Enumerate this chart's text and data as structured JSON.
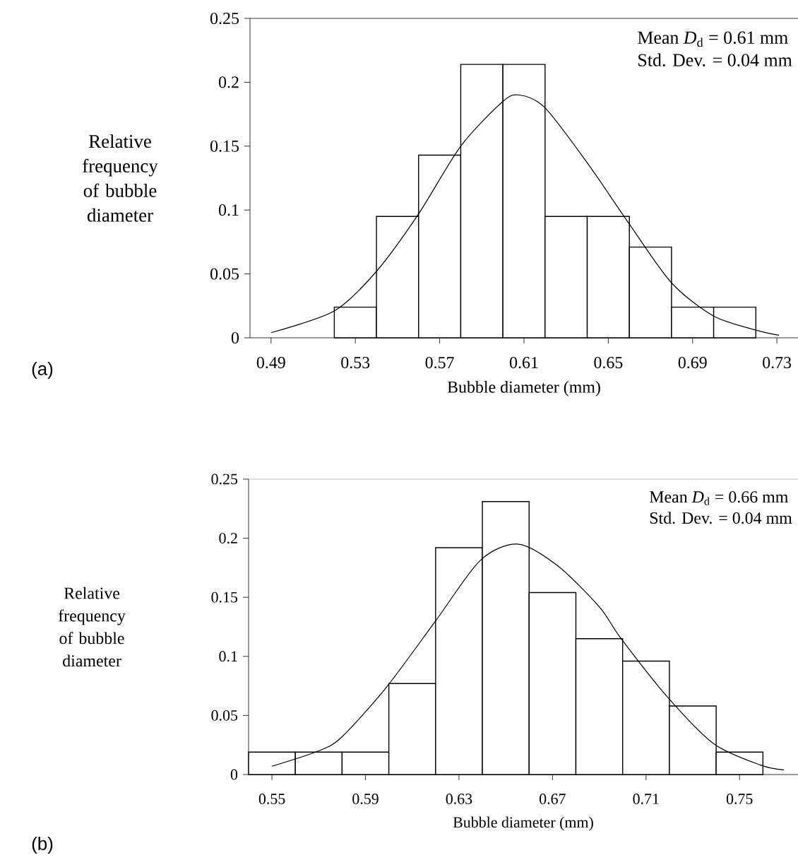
{
  "chart_data": [
    {
      "type": "histogram",
      "xlabel": "Bubble diameter (mm)",
      "ylabel": "Relative frequency of bubble diameter",
      "bins": [
        0.52,
        0.54,
        0.56,
        0.58,
        0.6,
        0.62,
        0.64,
        0.66,
        0.68,
        0.7,
        0.72
      ],
      "values": [
        0.024,
        0.095,
        0.143,
        0.214,
        0.214,
        0.095,
        0.095,
        0.071,
        0.024,
        0.024
      ],
      "series": [
        {
          "type": "line",
          "color": "#000000",
          "x": [
            0.49,
            0.52,
            0.54,
            0.56,
            0.58,
            0.6,
            0.608,
            0.62,
            0.64,
            0.66,
            0.68,
            0.7,
            0.72,
            0.731
          ],
          "values": [
            0.004,
            0.021,
            0.052,
            0.097,
            0.15,
            0.185,
            0.19,
            0.18,
            0.137,
            0.089,
            0.043,
            0.017,
            0.006,
            0.002
          ]
        }
      ],
      "xlim": [
        0.48,
        0.74
      ],
      "ylim": [
        0,
        0.25
      ],
      "xticks": [
        0.49,
        0.53,
        0.57,
        0.61,
        0.65,
        0.69,
        0.73
      ],
      "yticks": [
        0,
        0.05,
        0.1,
        0.15,
        0.2,
        0.25
      ],
      "annotations": [
        "Mean *D*$_{d}$ = 0.61 mm",
        "Std. Dev. = 0.04 mm",
        "(a)"
      ]
    },
    {
      "type": "histogram",
      "xlabel": "Bubble diameter (mm)",
      "ylabel": "Relative frequency of bubble diameter",
      "bins": [
        0.54,
        0.56,
        0.58,
        0.6,
        0.62,
        0.64,
        0.66,
        0.68,
        0.7,
        0.72,
        0.74,
        0.76
      ],
      "values": [
        0.019,
        0.019,
        0.019,
        0.077,
        0.192,
        0.231,
        0.154,
        0.115,
        0.096,
        0.058,
        0.019
      ],
      "series": [
        {
          "type": "line",
          "color": "#000000",
          "x": [
            0.55,
            0.57,
            0.58,
            0.599,
            0.62,
            0.639,
            0.655,
            0.672,
            0.69,
            0.699,
            0.719,
            0.739,
            0.759,
            0.769
          ],
          "values": [
            0.007,
            0.02,
            0.032,
            0.074,
            0.13,
            0.181,
            0.195,
            0.177,
            0.142,
            0.116,
            0.066,
            0.026,
            0.008,
            0.004
          ]
        }
      ],
      "xlim": [
        0.54,
        0.775
      ],
      "ylim": [
        0,
        0.25
      ],
      "xticks": [
        0.55,
        0.59,
        0.63,
        0.67,
        0.71,
        0.75
      ],
      "yticks": [
        0,
        0.05,
        0.1,
        0.15,
        0.2,
        0.25
      ],
      "annotations": [
        "Mean *D*$_{d}$ = 0.66 mm",
        "Std. Dev. = 0.04 mm",
        "(b)"
      ]
    }
  ]
}
